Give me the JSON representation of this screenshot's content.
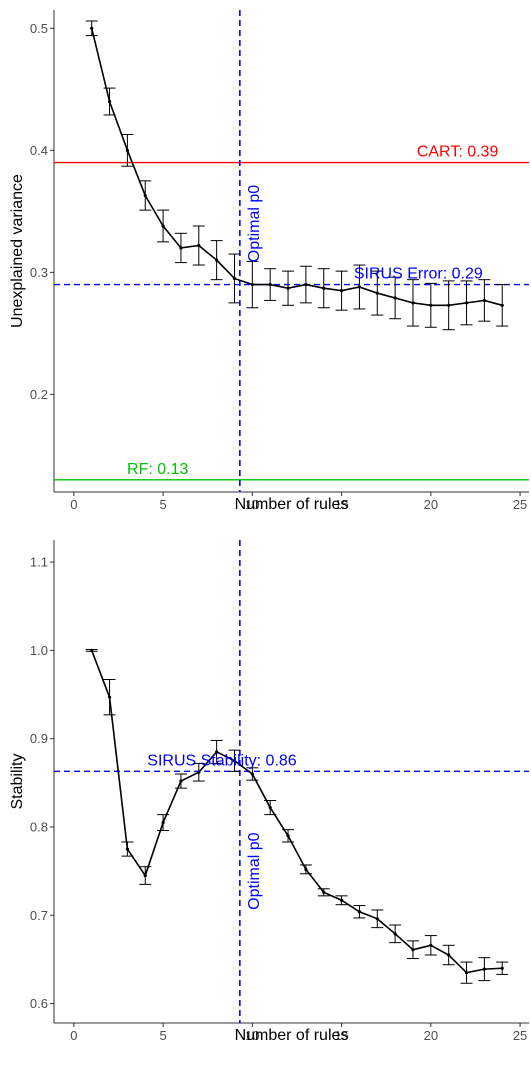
{
  "colors": {
    "cart": "#ff0000",
    "rf": "#00c000",
    "sirus": "#0000ff",
    "series": "#000000",
    "axis": "#333333",
    "tick_text": "#4d4d4d"
  },
  "chart_data": [
    {
      "type": "line",
      "xlabel": "Number of rules",
      "ylabel": "Unexplained variance",
      "xlim": [
        -1,
        25.5
      ],
      "ylim": [
        0.12,
        0.515
      ],
      "x_ticks": [
        0,
        5,
        10,
        15,
        20,
        25
      ],
      "y_ticks": [
        0.2,
        0.3,
        0.4,
        0.5
      ],
      "x": [
        1,
        2,
        3,
        4,
        5,
        6,
        7,
        8,
        9,
        10,
        11,
        12,
        13,
        14,
        15,
        16,
        17,
        18,
        19,
        20,
        21,
        22,
        23,
        24
      ],
      "values": [
        0.5,
        0.44,
        0.4,
        0.363,
        0.338,
        0.32,
        0.322,
        0.31,
        0.295,
        0.29,
        0.29,
        0.287,
        0.29,
        0.287,
        0.285,
        0.288,
        0.283,
        0.279,
        0.275,
        0.273,
        0.273,
        0.275,
        0.277,
        0.273
      ],
      "error": [
        0.006,
        0.011,
        0.013,
        0.012,
        0.013,
        0.012,
        0.016,
        0.016,
        0.02,
        0.019,
        0.013,
        0.014,
        0.015,
        0.016,
        0.016,
        0.018,
        0.018,
        0.017,
        0.019,
        0.018,
        0.02,
        0.018,
        0.017,
        0.017
      ],
      "hlines": [
        {
          "value": 0.39,
          "label": "CART: 0.39",
          "color": "#ff0000",
          "dash": false,
          "label_x": 21.5
        },
        {
          "value": 0.29,
          "label": "SIRUS Error: 0.29",
          "color": "#0000ff",
          "dash": true,
          "label_x": 19.3
        },
        {
          "value": 0.13,
          "label": "RF: 0.13",
          "color": "#00c000",
          "dash": false,
          "label_x": 4.7
        }
      ],
      "vline": {
        "value": 9.3,
        "label": "Optimal p0",
        "color": "#0000ff",
        "label_y": 0.34
      }
    },
    {
      "type": "line",
      "xlabel": "Number of rules",
      "ylabel": "Stability",
      "xlim": [
        -1,
        25.5
      ],
      "ylim": [
        0.578,
        1.125
      ],
      "x_ticks": [
        0,
        5,
        10,
        15,
        20,
        25
      ],
      "y_ticks": [
        0.6,
        0.7,
        0.8,
        0.9,
        1.0,
        1.1
      ],
      "y_tick_labels": [
        "0.6",
        "0.7",
        "0.8",
        "0.9",
        "1.0",
        "1.1"
      ],
      "x": [
        1,
        2,
        3,
        4,
        5,
        6,
        7,
        8,
        9,
        10,
        11,
        12,
        13,
        14,
        15,
        16,
        17,
        18,
        19,
        20,
        21,
        22,
        23,
        24
      ],
      "values": [
        1.0,
        0.947,
        0.775,
        0.745,
        0.805,
        0.852,
        0.862,
        0.885,
        0.875,
        0.86,
        0.822,
        0.79,
        0.752,
        0.726,
        0.717,
        0.704,
        0.696,
        0.679,
        0.661,
        0.666,
        0.655,
        0.635,
        0.639,
        0.64
      ],
      "error": [
        0.001,
        0.02,
        0.008,
        0.01,
        0.009,
        0.008,
        0.01,
        0.013,
        0.012,
        0.007,
        0.008,
        0.007,
        0.005,
        0.004,
        0.005,
        0.007,
        0.01,
        0.01,
        0.01,
        0.011,
        0.011,
        0.012,
        0.013,
        0.007
      ],
      "hlines": [
        {
          "value": 0.863,
          "label": "SIRUS Stability: 0.86",
          "color": "#0000ff",
          "dash": true,
          "label_x": 8.3
        }
      ],
      "vline": {
        "value": 9.3,
        "label": "Optimal p0",
        "color": "#0000ff",
        "label_y": 0.75
      }
    }
  ]
}
